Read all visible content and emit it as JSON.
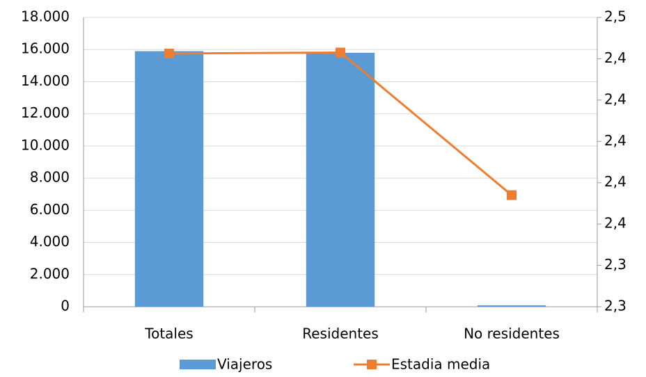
{
  "chart_data": {
    "type": "bar-line",
    "categories": [
      "Totales",
      "Residentes",
      "No residentes"
    ],
    "series": [
      {
        "name": "Viajeros",
        "type": "bar",
        "color": "#5b9bd5",
        "values": [
          15900,
          15800,
          90
        ]
      },
      {
        "name": "Estadia media",
        "type": "line",
        "color": "#ed7d31",
        "axis": "y2",
        "values": [
          2.4425,
          2.443,
          2.374
        ]
      }
    ],
    "ylim": [
      0,
      18000
    ],
    "yticks": [
      0,
      {
        "value": 2000,
        "label": "2.000"
      },
      {
        "value": 4000,
        "label": "4.000"
      },
      {
        "value": 6000,
        "label": "6.000"
      },
      {
        "value": 8000,
        "label": "8.000"
      },
      {
        "value": 10000,
        "label": "10.000"
      },
      {
        "value": 12000,
        "label": "12.000"
      },
      {
        "value": 14000,
        "label": "14.000"
      },
      {
        "value": 16000,
        "label": "16.000"
      },
      {
        "value": 18000,
        "label": "18.000"
      }
    ],
    "y2lim": [
      2.32,
      2.46
    ],
    "y2ticks": [
      {
        "value": 2.32,
        "label": "2,3"
      },
      {
        "value": 2.34,
        "label": "2,3"
      },
      {
        "value": 2.36,
        "label": "2,4"
      },
      {
        "value": 2.38,
        "label": "2,4"
      },
      {
        "value": 2.4,
        "label": "2,4"
      },
      {
        "value": 2.42,
        "label": "2,4"
      },
      {
        "value": 2.44,
        "label": "2,4"
      },
      {
        "value": 2.46,
        "label": "2,5"
      }
    ],
    "grid": true,
    "legend": "bottom"
  }
}
